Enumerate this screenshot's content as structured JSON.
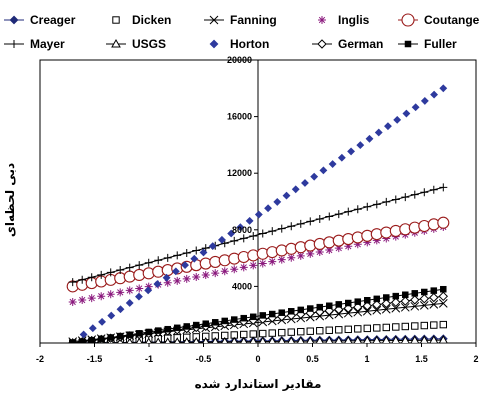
{
  "chart_data": {
    "type": "scatter",
    "title": "",
    "xlabel": "مقادیر استاندارد شده",
    "ylabel": "دبی لحظه‌ای",
    "xlim": [
      -2,
      2
    ],
    "ylim": [
      0,
      20000
    ],
    "x_ticks": [
      -2,
      -1.5,
      -1,
      -0.5,
      0,
      0.5,
      1,
      1.5,
      2
    ],
    "y_ticks": [
      4000,
      8000,
      12000,
      16000,
      20000
    ],
    "grid": false,
    "legend_position": "top",
    "point_count": 40,
    "x_range": [
      -1.7,
      1.7
    ],
    "series": [
      {
        "name": "Creager",
        "marker": "diamond-filled-line",
        "color": "#1f2a78",
        "x_range": [
          -1.7,
          1.7
        ],
        "y_range": [
          0,
          300
        ]
      },
      {
        "name": "Dicken",
        "marker": "square-open",
        "color": "#000000",
        "x_range": [
          -1.7,
          1.7
        ],
        "y_range": [
          0,
          1300
        ]
      },
      {
        "name": "Fanning",
        "marker": "x-line",
        "color": "#000000",
        "x_range": [
          -1.7,
          1.7
        ],
        "y_range": [
          100,
          2800
        ]
      },
      {
        "name": "Inglis",
        "marker": "star",
        "color": "#8b1a7e",
        "x_range": [
          -1.7,
          1.7
        ],
        "y_range": [
          2900,
          8200
        ]
      },
      {
        "name": "Coutange",
        "marker": "circle-open-line",
        "color": "#9a1b1b",
        "x_range": [
          -1.7,
          1.7
        ],
        "y_range": [
          4000,
          8500
        ]
      },
      {
        "name": "Mayer",
        "marker": "plus-line",
        "color": "#000000",
        "x_range": [
          -1.7,
          1.7
        ],
        "y_range": [
          4300,
          11000
        ]
      },
      {
        "name": "USGS",
        "marker": "triangle-open-line",
        "color": "#000000",
        "x_range": [
          -1.7,
          1.7
        ],
        "y_range": [
          0,
          200
        ]
      },
      {
        "name": "Horton",
        "marker": "diamond-filled",
        "color": "#2e3a9e",
        "x_range": [
          -1.6,
          1.7
        ],
        "y_range": [
          600,
          18000
        ]
      },
      {
        "name": "German",
        "marker": "diamond-open-line",
        "color": "#000000",
        "x_range": [
          -1.7,
          1.7
        ],
        "y_range": [
          0,
          3300
        ]
      },
      {
        "name": "Fuller",
        "marker": "square-filled-line",
        "color": "#000000",
        "x_range": [
          -1.7,
          1.7
        ],
        "y_range": [
          0,
          3800
        ]
      }
    ]
  }
}
